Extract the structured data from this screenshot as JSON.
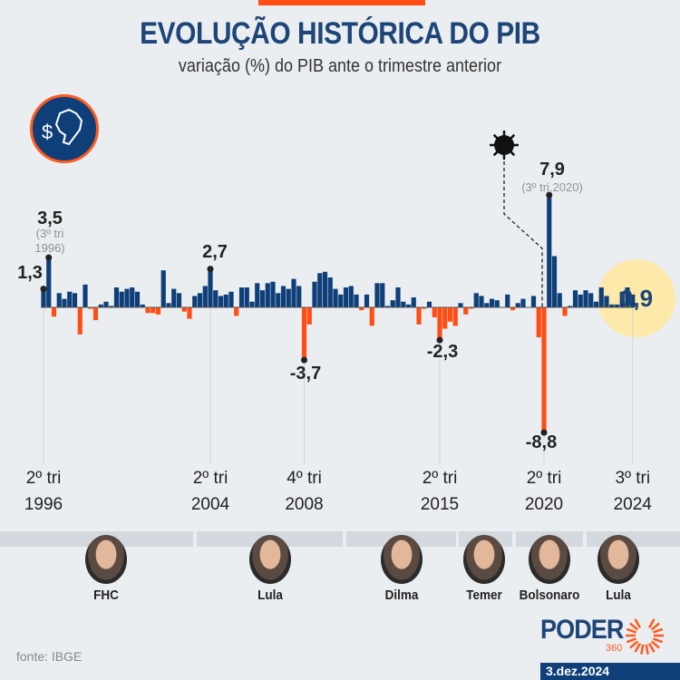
{
  "header": {
    "title": "EVOLUÇÃO HISTÓRICA DO PIB",
    "subtitle": "variação (%) do PIB ante o trimestre anterior"
  },
  "chart_data": {
    "type": "bar",
    "title": "EVOLUÇÃO HISTÓRICA DO PIB",
    "subtitle": "variação (%) do PIB ante o trimestre anterior",
    "x_start": "2º tri 1996",
    "x_end": "3º tri 2024",
    "values": [
      1.3,
      3.5,
      -0.65,
      1.0,
      0.6,
      1.1,
      1.0,
      -1.9,
      1.6,
      -0.1,
      -0.9,
      0.2,
      0.4,
      0.1,
      1.4,
      1.1,
      1.3,
      1.4,
      1.1,
      0.2,
      -0.4,
      -0.4,
      -0.5,
      2.6,
      0.3,
      1.3,
      1.0,
      -0.3,
      -0.8,
      0.8,
      1.0,
      1.5,
      2.7,
      1.2,
      0.8,
      0.9,
      1.1,
      -0.6,
      1.4,
      1.4,
      0.4,
      1.7,
      1.2,
      1.7,
      1.8,
      1.0,
      1.5,
      1.3,
      2.0,
      1.5,
      -3.7,
      -1.2,
      1.8,
      2.4,
      2.5,
      2.1,
      1.3,
      0.9,
      1.4,
      1.5,
      0.9,
      -0.2,
      0.9,
      -1.3,
      1.7,
      1.7,
      0.1,
      0.5,
      1.4,
      0.4,
      0.2,
      0.7,
      -1.2,
      -0.1,
      0.4,
      -0.7,
      -2.3,
      -1.5,
      -1.0,
      -1.3,
      0.3,
      -0.5,
      -0.1,
      1.0,
      0.8,
      0.3,
      0.6,
      0.5,
      0.0,
      0.9,
      -0.2,
      0.3,
      0.6,
      0.0,
      0.8,
      -2.1,
      -8.8,
      7.9,
      3.6,
      1.0,
      -0.6,
      0.1,
      1.2,
      0.9,
      1.2,
      1.0,
      0.4,
      1.4,
      0.8,
      0.2,
      0.2,
      1.1,
      1.4,
      0.9
    ],
    "ylim": [
      -8.8,
      7.9
    ],
    "colors": {
      "positive": "#0f3f78",
      "negative": "#ff4d14",
      "highlight": "#fde9a9"
    },
    "tick_labels": [
      {
        "index": 0,
        "line1": "2º tri",
        "line2": "1996"
      },
      {
        "index": 32,
        "line1": "2º tri",
        "line2": "2004"
      },
      {
        "index": 50,
        "line1": "4º tri",
        "line2": "2008"
      },
      {
        "index": 76,
        "line1": "2º tri",
        "line2": "2015"
      },
      {
        "index": 96,
        "line1": "2º tri",
        "line2": "2020"
      },
      {
        "index": 113,
        "line1": "3º tri",
        "line2": "2024"
      }
    ],
    "annotations": [
      {
        "index": 0,
        "label": "1,3",
        "note": ""
      },
      {
        "index": 1,
        "label": "3,5",
        "note": "(3º tri 1996)"
      },
      {
        "index": 32,
        "label": "2,7",
        "note": ""
      },
      {
        "index": 50,
        "label": "-3,7",
        "note": ""
      },
      {
        "index": 76,
        "label": "-2,3",
        "note": ""
      },
      {
        "index": 96,
        "label": "-8,8",
        "note": ""
      },
      {
        "index": 97,
        "label": "7,9",
        "note": "(3º tri.2020)"
      },
      {
        "index": 113,
        "label": "0,9",
        "note": ""
      }
    ],
    "event_icon": "coronavirus-icon"
  },
  "presidents": [
    {
      "name": "FHC"
    },
    {
      "name": "Lula"
    },
    {
      "name": "Dilma"
    },
    {
      "name": "Temer"
    },
    {
      "name": "Bolsonaro"
    },
    {
      "name": "Lula"
    }
  ],
  "footer": {
    "source": "fonte: IBGE",
    "brand": "PODER",
    "brand_sub": "360",
    "date": "3.dez.2024"
  },
  "badge_icon": "brazil-money-icon"
}
